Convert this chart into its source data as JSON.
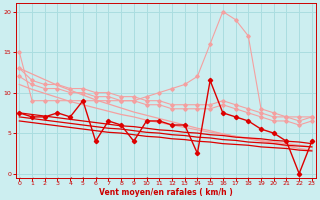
{
  "x": [
    0,
    1,
    2,
    3,
    4,
    5,
    6,
    7,
    8,
    9,
    10,
    11,
    12,
    13,
    14,
    15,
    16,
    17,
    18,
    19,
    20,
    21,
    22,
    23
  ],
  "line_pink_upper": [
    15,
    9,
    9,
    9,
    9,
    9,
    9,
    9,
    9,
    9,
    9.5,
    10,
    10.5,
    11,
    12,
    16,
    20,
    19,
    17,
    8,
    7.5,
    7,
    7,
    7
  ],
  "line_pink_mid1": [
    13,
    11.5,
    11,
    11,
    10.5,
    10.5,
    10,
    10,
    9.5,
    9.5,
    9,
    9,
    8.5,
    8.5,
    8.5,
    8.5,
    9,
    8.5,
    8,
    7.5,
    7,
    7,
    6.5,
    7
  ],
  "line_pink_mid2": [
    12,
    11,
    10.5,
    10.5,
    10,
    10,
    9.5,
    9.5,
    9,
    9,
    8.5,
    8.5,
    8,
    8,
    8,
    8,
    8.5,
    8,
    7.5,
    7,
    6.5,
    6.5,
    6,
    6.5
  ],
  "line_pink_trend1": [
    13,
    12.3,
    11.6,
    10.9,
    10.3,
    9.7,
    9.1,
    8.6,
    8.1,
    7.6,
    7.2,
    6.8,
    6.4,
    6.0,
    5.6,
    5.3,
    4.9,
    4.6,
    4.3,
    4.0,
    3.7,
    3.4,
    3.1,
    2.9
  ],
  "line_pink_trend2": [
    11,
    10.4,
    9.9,
    9.4,
    8.9,
    8.5,
    8.1,
    7.7,
    7.3,
    7.0,
    6.6,
    6.3,
    6.0,
    5.7,
    5.4,
    5.1,
    4.9,
    4.6,
    4.4,
    4.1,
    3.9,
    3.7,
    3.5,
    3.3
  ],
  "line_red_data": [
    7.5,
    7,
    7,
    7.5,
    7,
    9,
    4,
    6.5,
    6,
    4,
    6.5,
    6.5,
    6,
    6,
    2.5,
    11.5,
    7.5,
    7,
    6.5,
    5.5,
    5,
    4,
    0,
    4
  ],
  "line_red_trend1": [
    7.5,
    7.3,
    7.1,
    6.9,
    6.7,
    6.5,
    6.3,
    6.1,
    5.9,
    5.8,
    5.6,
    5.4,
    5.3,
    5.1,
    5.0,
    4.8,
    4.7,
    4.5,
    4.4,
    4.3,
    4.1,
    4.0,
    3.9,
    3.7
  ],
  "line_red_trend2": [
    7,
    6.8,
    6.6,
    6.4,
    6.2,
    6.0,
    5.8,
    5.6,
    5.5,
    5.3,
    5.1,
    5.0,
    4.8,
    4.7,
    4.5,
    4.4,
    4.2,
    4.1,
    3.9,
    3.8,
    3.7,
    3.5,
    3.4,
    3.3
  ],
  "line_red_trend3": [
    6.5,
    6.3,
    6.1,
    5.9,
    5.7,
    5.5,
    5.3,
    5.1,
    5.0,
    4.8,
    4.6,
    4.5,
    4.3,
    4.2,
    4.0,
    3.9,
    3.7,
    3.6,
    3.5,
    3.3,
    3.2,
    3.1,
    2.9,
    2.8
  ],
  "xlabel": "Vent moyen/en rafales ( km/h )",
  "bg_color": "#cceef0",
  "grid_color": "#aadde0",
  "pink_color": "#f4a0a0",
  "red_color": "#dd0000",
  "label_color": "#cc0000",
  "ylim": [
    -0.5,
    21
  ],
  "xlim": [
    -0.3,
    23.3
  ],
  "yticks": [
    0,
    5,
    10,
    15,
    20
  ],
  "xticks": [
    0,
    1,
    2,
    3,
    4,
    5,
    6,
    7,
    8,
    9,
    10,
    11,
    12,
    13,
    14,
    15,
    16,
    17,
    18,
    19,
    20,
    21,
    22,
    23
  ]
}
